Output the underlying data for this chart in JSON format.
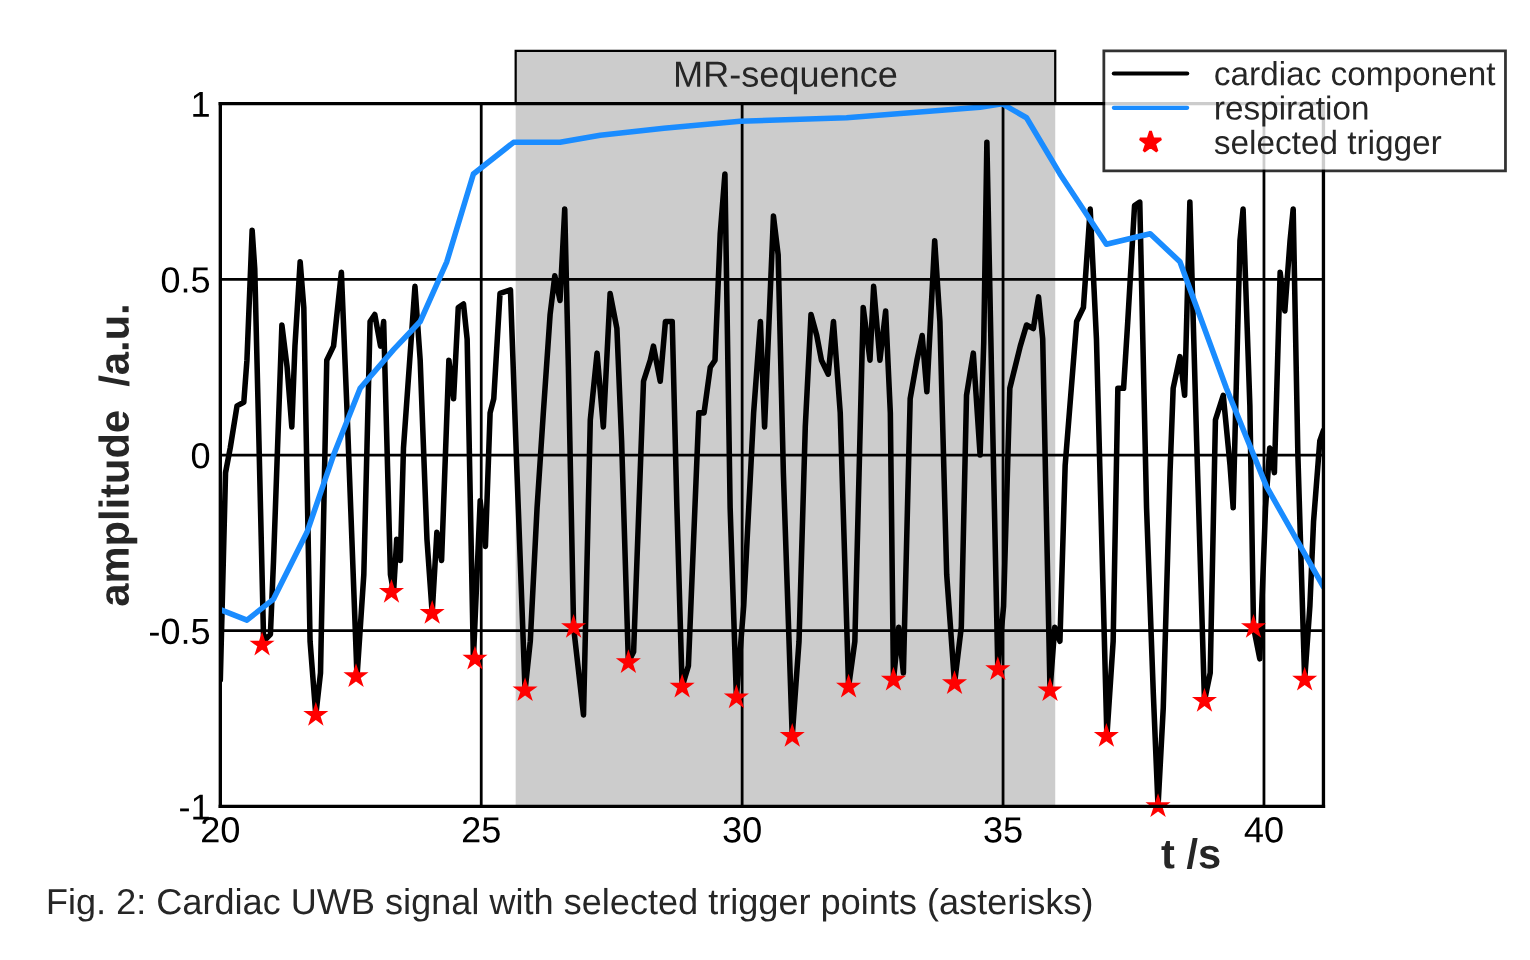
{
  "chart_data": {
    "type": "line",
    "xlabel": "t /s",
    "ylabel": "amplitude  /a.u.",
    "xlim": [
      20,
      41.14
    ],
    "ylim": [
      -1,
      1
    ],
    "xticks": [
      20,
      25,
      30,
      35,
      40
    ],
    "yticks": [
      -1,
      -0.5,
      0,
      0.5,
      1
    ],
    "grid": true,
    "legend": "top right",
    "line_style": "solid",
    "bands": [
      {
        "axis": "x",
        "from": 25.66,
        "to": 36.0,
        "label": "MR-sequence",
        "color": "#cccccc"
      }
    ],
    "annotations": [
      "Fig. 2: Cardiac UWB signal with selected trigger points (asterisks)"
    ],
    "series": [
      {
        "name": "cardiac component",
        "color": "#000000",
        "x": [
          20.0,
          20.1,
          20.19,
          20.32,
          20.45,
          20.51,
          20.61,
          20.66,
          20.74,
          20.83,
          20.96,
          21.02,
          21.18,
          21.28,
          21.37,
          21.43,
          21.53,
          21.6,
          21.72,
          21.83,
          21.92,
          22.04,
          22.17,
          22.32,
          22.43,
          22.62,
          22.75,
          22.87,
          22.96,
          23.07,
          23.13,
          23.26,
          23.32,
          23.38,
          23.45,
          23.51,
          23.73,
          23.83,
          23.96,
          24.06,
          24.15,
          24.24,
          24.38,
          24.47,
          24.56,
          24.66,
          24.73,
          24.85,
          24.98,
          25.08,
          25.17,
          25.24,
          25.36,
          25.56,
          25.68,
          25.84,
          25.94,
          26.07,
          26.19,
          26.32,
          26.41,
          26.51,
          26.6,
          26.67,
          26.77,
          26.96,
          27.09,
          27.22,
          27.34,
          27.47,
          27.6,
          27.69,
          27.82,
          27.92,
          28.11,
          28.24,
          28.3,
          28.43,
          28.53,
          28.66,
          28.75,
          28.85,
          28.97,
          29.17,
          29.27,
          29.39,
          29.48,
          29.58,
          29.67,
          29.77,
          29.89,
          30.03,
          30.22,
          30.35,
          30.43,
          30.6,
          30.69,
          30.79,
          30.96,
          31.09,
          31.21,
          31.32,
          31.43,
          31.52,
          31.65,
          31.75,
          31.88,
          32.04,
          32.16,
          32.32,
          32.45,
          32.52,
          32.64,
          32.75,
          32.84,
          32.9,
          33.0,
          33.09,
          33.22,
          33.35,
          33.45,
          33.54,
          33.69,
          33.79,
          33.92,
          34.07,
          34.2,
          34.3,
          34.43,
          34.56,
          34.63,
          34.69,
          34.78,
          34.9,
          35.01,
          35.13,
          35.33,
          35.45,
          35.58,
          35.68,
          35.76,
          35.9,
          35.99,
          36.09,
          36.19,
          36.41,
          36.54,
          36.67,
          36.79,
          36.99,
          37.11,
          37.2,
          37.31,
          37.39,
          37.52,
          37.62,
          37.75,
          37.88,
          37.97,
          38.07,
          38.2,
          38.26,
          38.39,
          38.48,
          38.58,
          38.71,
          38.86,
          38.97,
          39.07,
          39.22,
          39.35,
          39.41,
          39.54,
          39.6,
          39.73,
          39.8,
          39.92,
          40.03,
          40.11,
          40.2,
          40.31,
          40.4,
          40.5,
          40.56,
          40.65,
          40.78,
          40.88,
          40.95,
          41.07,
          41.14
        ],
        "values": [
          -0.64,
          -0.05,
          0.02,
          0.14,
          0.15,
          0.27,
          0.64,
          0.53,
          0.04,
          -0.53,
          -0.51,
          -0.3,
          0.37,
          0.25,
          0.08,
          0.31,
          0.55,
          0.42,
          -0.53,
          -0.74,
          -0.62,
          0.27,
          0.31,
          0.52,
          0.12,
          -0.63,
          -0.34,
          0.38,
          0.4,
          0.31,
          0.38,
          -0.34,
          -0.39,
          -0.24,
          -0.3,
          0.02,
          0.48,
          0.27,
          -0.24,
          -0.45,
          -0.22,
          -0.3,
          0.27,
          0.16,
          0.42,
          0.43,
          0.33,
          -0.58,
          -0.13,
          -0.26,
          0.12,
          0.16,
          0.46,
          0.47,
          -0.03,
          -0.67,
          -0.53,
          -0.15,
          0.12,
          0.4,
          0.51,
          0.44,
          0.7,
          0.25,
          -0.49,
          -0.74,
          0.1,
          0.29,
          0.08,
          0.46,
          0.36,
          0.04,
          -0.59,
          -0.56,
          0.21,
          0.27,
          0.31,
          0.21,
          0.38,
          0.38,
          -0.15,
          -0.66,
          -0.6,
          0.12,
          0.12,
          0.25,
          0.27,
          0.63,
          0.8,
          -0.15,
          -0.69,
          -0.43,
          0.12,
          0.38,
          0.08,
          0.68,
          0.57,
          -0.05,
          -0.8,
          -0.53,
          0.08,
          0.4,
          0.34,
          0.27,
          0.23,
          0.38,
          0.12,
          -0.66,
          -0.53,
          0.42,
          0.27,
          0.48,
          0.27,
          0.41,
          0.12,
          -0.64,
          -0.49,
          -0.62,
          0.16,
          0.27,
          0.34,
          0.18,
          0.61,
          0.38,
          -0.34,
          -0.65,
          -0.49,
          0.17,
          0.29,
          0.0,
          0.32,
          0.89,
          0.23,
          -0.61,
          -0.43,
          0.19,
          0.31,
          0.37,
          0.36,
          0.45,
          0.33,
          -0.67,
          -0.49,
          -0.53,
          -0.03,
          0.38,
          0.42,
          0.7,
          0.33,
          -0.8,
          -0.53,
          0.19,
          0.19,
          0.38,
          0.71,
          0.72,
          -0.15,
          -0.68,
          -1.0,
          -0.72,
          -0.05,
          0.19,
          0.28,
          0.17,
          0.72,
          0.04,
          -0.7,
          -0.62,
          0.1,
          0.17,
          -0.03,
          -0.15,
          0.61,
          0.7,
          0.14,
          -0.49,
          -0.58,
          -0.15,
          0.02,
          -0.05,
          0.52,
          0.41,
          0.61,
          0.7,
          0.0,
          -0.64,
          -0.43,
          -0.19,
          0.04,
          0.07
        ]
      },
      {
        "name": "respiration",
        "color": "#1a8cff",
        "x": [
          20.0,
          20.51,
          21.02,
          21.66,
          22.17,
          22.68,
          23.32,
          23.83,
          24.34,
          24.85,
          25.62,
          26.51,
          27.28,
          28.5,
          29.96,
          32.0,
          34.56,
          34.98,
          35.45,
          36.09,
          36.98,
          37.82,
          38.39,
          39.28,
          40.05,
          41.14
        ],
        "values": [
          -0.44,
          -0.47,
          -0.41,
          -0.22,
          0.0,
          0.19,
          0.3,
          0.38,
          0.55,
          0.8,
          0.89,
          0.89,
          0.91,
          0.93,
          0.95,
          0.96,
          0.99,
          1.0,
          0.96,
          0.8,
          0.6,
          0.63,
          0.55,
          0.19,
          -0.09,
          -0.375
        ]
      },
      {
        "name": "selected trigger",
        "type": "scatter",
        "color": "#ff0000",
        "marker": "star",
        "x": [
          20.8,
          21.83,
          22.6,
          23.28,
          24.06,
          24.88,
          25.84,
          26.77,
          27.82,
          28.85,
          29.89,
          30.96,
          32.04,
          32.9,
          34.07,
          34.9,
          35.9,
          36.98,
          37.97,
          38.86,
          39.8,
          40.78
        ],
        "values": [
          -0.54,
          -0.74,
          -0.63,
          -0.39,
          -0.45,
          -0.58,
          -0.67,
          -0.49,
          -0.59,
          -0.66,
          -0.69,
          -0.8,
          -0.66,
          -0.64,
          -0.65,
          -0.61,
          -0.67,
          -0.8,
          -1.0,
          -0.7,
          -0.49,
          -0.64
        ]
      }
    ]
  }
}
